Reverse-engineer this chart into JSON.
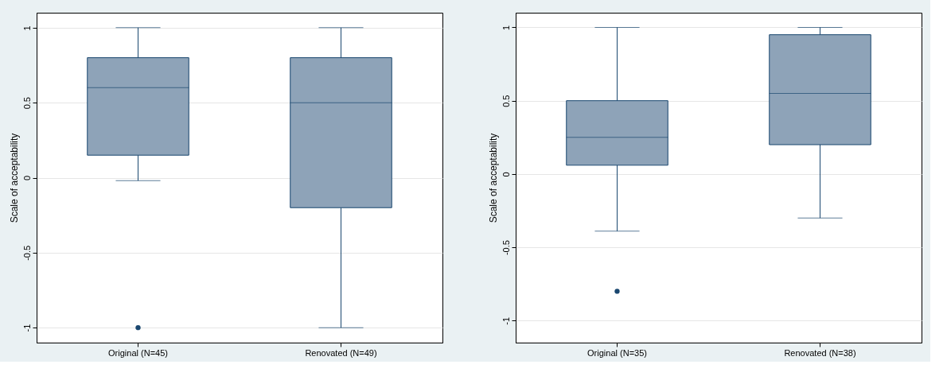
{
  "chart_data": [
    {
      "type": "box",
      "ylabel": "Scale of acceptability",
      "categories": [
        "Original (N=45)",
        "Renovated (N=49)"
      ],
      "ylim": [
        -1.1,
        1.1
      ],
      "yticks": [
        -1,
        -0.5,
        0,
        0.5,
        1
      ],
      "grid": "y",
      "series": [
        {
          "color": "#8ea3b8",
          "boxes": [
            {
              "low": -0.02,
              "q1": 0.15,
              "median": 0.6,
              "q3": 0.8,
              "high": 1,
              "outliers": [
                -1
              ]
            },
            {
              "low": -1,
              "q1": -0.2,
              "median": 0.5,
              "q3": 0.8,
              "high": 1
            }
          ]
        }
      ]
    },
    {
      "type": "box",
      "ylabel": "Scale of acceptability",
      "categories": [
        "Original (N=35)",
        "Renovated (N=38)"
      ],
      "ylim": [
        -1.15,
        1.1
      ],
      "yticks": [
        -1,
        -0.5,
        0,
        0.5,
        1
      ],
      "grid": "y",
      "series": [
        {
          "color": "#8ea3b8",
          "boxes": [
            {
              "low": -0.39,
              "q1": 0.06,
              "median": 0.25,
              "q3": 0.5,
              "high": 1,
              "outliers": [
                -0.8
              ]
            },
            {
              "low": -0.3,
              "q1": 0.2,
              "median": 0.55,
              "q3": 0.95,
              "high": 1
            }
          ]
        }
      ]
    }
  ]
}
